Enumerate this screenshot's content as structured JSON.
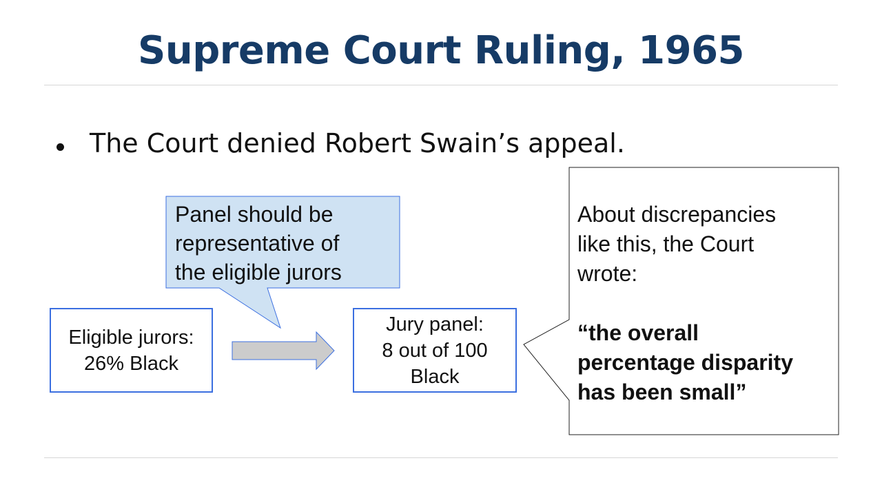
{
  "title": "Supreme Court Ruling, 1965",
  "bullet": "The Court denied Robert Swain’s appeal.",
  "eligible_box": {
    "lines": [
      "Eligible jurors:",
      "26% Black"
    ]
  },
  "jury_box": {
    "lines": [
      "Jury panel:",
      "8 out of 100",
      "Black"
    ]
  },
  "callout": {
    "lines": [
      "Panel should be",
      "representative of",
      "the eligible jurors"
    ]
  },
  "quote_box": {
    "intro_lines": [
      "About discrepancies",
      "like this, the Court",
      "wrote:"
    ],
    "quote_lines": [
      "“the overall",
      "percentage disparity",
      "has been small”"
    ]
  },
  "colors": {
    "title": "#163b66",
    "box_border": "#3b6fe0",
    "callout_fill": "#cfe2f3",
    "arrow_fill": "#cccccc"
  }
}
